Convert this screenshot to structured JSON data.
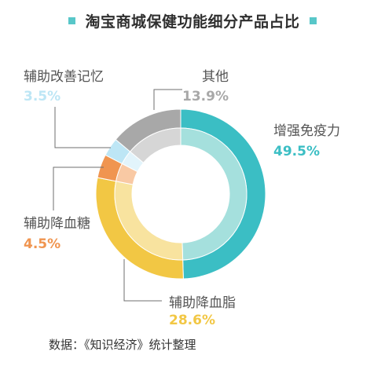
{
  "title": "淘宝商城保健功能细分产品占比",
  "source": "数据：《知识经济》统计整理",
  "colors": {
    "title_marker": "#58c7c9"
  },
  "chart_data": {
    "type": "pie",
    "style": "donut, two concentric rings",
    "title": "淘宝商城保健功能细分产品占比",
    "start": "12 o'clock, clockwise",
    "slices": [
      {
        "label": "增强免疫力",
        "value": 49.5,
        "pct_text": "49.5%",
        "outer": "#3bbec4",
        "inner": "#a5e0dd",
        "text_color": "#3bbec4"
      },
      {
        "label": "辅助降血脂",
        "value": 28.6,
        "pct_text": "28.6%",
        "outer": "#f2c744",
        "inner": "#f8e39f",
        "text_color": "#f2c744"
      },
      {
        "label": "辅助降血糖",
        "value": 4.5,
        "pct_text": "4.5%",
        "outer": "#f09550",
        "inner": "#f9c9a4",
        "text_color": "#f09550"
      },
      {
        "label": "辅助改善记忆",
        "value": 3.5,
        "pct_text": "3.5%",
        "outer": "#bde6f5",
        "inner": "#e2f4fb",
        "text_color": "#bde6f5"
      },
      {
        "label": "其他",
        "value": 13.9,
        "pct_text": "13.9%",
        "outer": "#a8a8a8",
        "inner": "#d6d6d6",
        "text_color": "#a8a8a8"
      }
    ]
  }
}
